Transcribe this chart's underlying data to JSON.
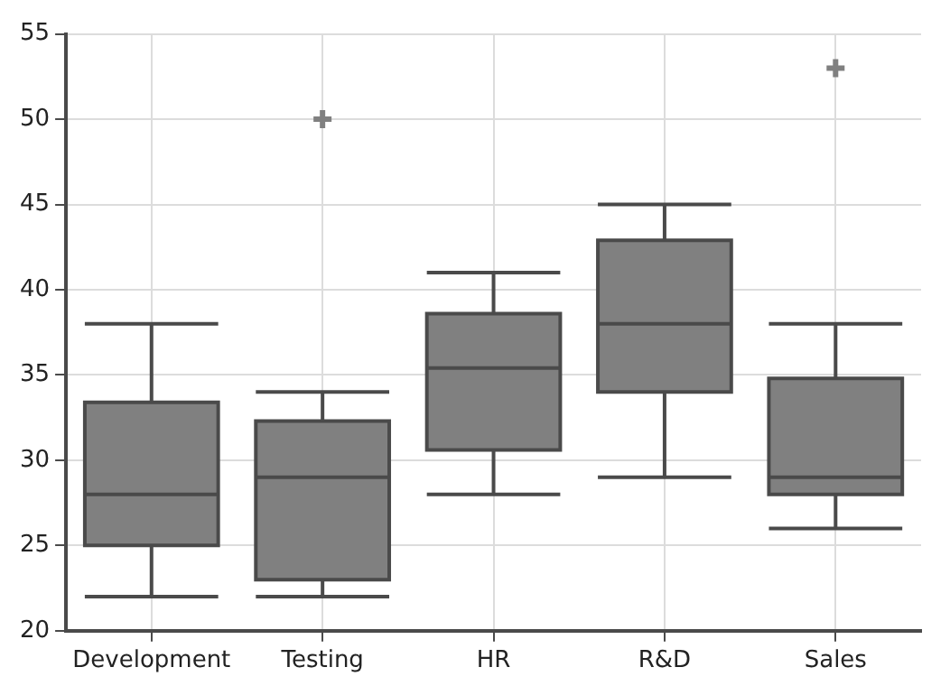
{
  "chart_data": {
    "type": "box",
    "categories": [
      "Development",
      "Testing",
      "HR",
      "R&D",
      "Sales"
    ],
    "boxes": [
      {
        "low": 22,
        "q1": 25,
        "median": 28,
        "q3": 33.4,
        "high": 38
      },
      {
        "low": 22,
        "q1": 23,
        "median": 29,
        "q3": 32.3,
        "high": 34,
        "outliers": [
          50
        ]
      },
      {
        "low": 28,
        "q1": 30.6,
        "median": 35.4,
        "q3": 38.6,
        "high": 41
      },
      {
        "low": 29,
        "q1": 34,
        "median": 38,
        "q3": 42.9,
        "high": 45
      },
      {
        "low": 26,
        "q1": 28,
        "median": 29,
        "q3": 34.8,
        "high": 38,
        "outliers": [
          53
        ]
      }
    ],
    "color": "#808080",
    "ylim": [
      20,
      55
    ],
    "yticks": [
      20,
      25,
      30,
      35,
      40,
      45,
      50,
      55
    ],
    "grid": true
  }
}
